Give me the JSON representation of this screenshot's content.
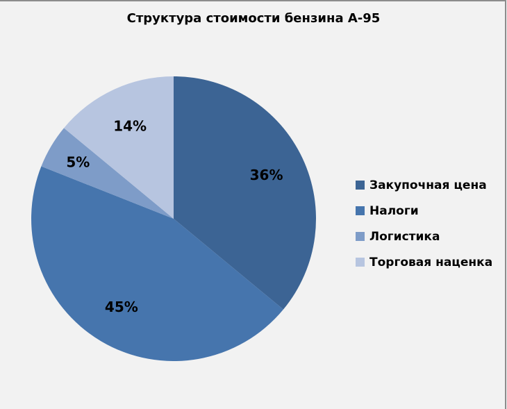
{
  "chart_data": {
    "type": "pie",
    "title": "Структура стоимости бензина А-95",
    "categories": [
      "Закупочная цена",
      "Налоги",
      "Логистика",
      "Торговая наценка"
    ],
    "values": [
      36,
      45,
      5,
      14
    ],
    "labels": [
      "36%",
      "45%",
      "5%",
      "14%"
    ],
    "colors": [
      "#3c6494",
      "#4675ad",
      "#7e9cc8",
      "#b7c5e0"
    ],
    "legend_position": "right"
  }
}
